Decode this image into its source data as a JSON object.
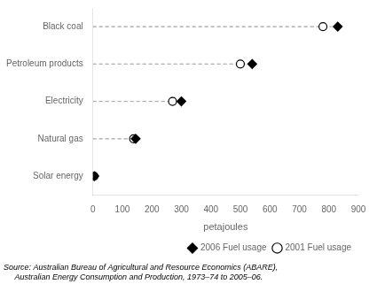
{
  "chart_data": {
    "type": "dot",
    "orientation": "horizontal",
    "categories": [
      "Black coal",
      "Petroleum products",
      "Electricity",
      "Natural gas",
      "Solar energy"
    ],
    "series": [
      {
        "name": "2006 Fuel usage",
        "color": "#000000",
        "marker": "diamond",
        "values": [
          830,
          540,
          300,
          145,
          5
        ]
      },
      {
        "name": "2001 Fuel usage",
        "color": "#000000",
        "marker": "circle-open",
        "values": [
          780,
          500,
          270,
          138,
          4
        ]
      }
    ],
    "xlabel": "petajoules",
    "xlim": [
      0,
      900
    ],
    "xticks": [
      0,
      100,
      200,
      300,
      400,
      500,
      600,
      700,
      800,
      900
    ],
    "grid": false,
    "legend": "lower right",
    "line_style": "dashed",
    "color": "#b0b0b0",
    "annotations": [
      "Source: Australian Bureau of Agricultural and Resource Economics (ABARE),",
      "     Australian Energy Consumption and Production, 1973–74 to 2005–06."
    ]
  }
}
